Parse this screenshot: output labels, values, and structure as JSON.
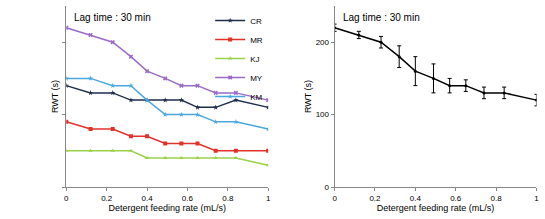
{
  "chart_data": [
    {
      "type": "line",
      "annotation": "Lag time : 30 min",
      "x_label": "Detergent feeding rate (mL/s)",
      "y_label": "RWT (s)",
      "x": [
        0,
        0.12,
        0.23,
        0.32,
        0.4,
        0.49,
        0.57,
        0.65,
        0.74,
        0.84,
        1
      ],
      "xlim": [
        0,
        1
      ],
      "xticks": [
        0,
        0.2,
        0.4,
        0.6,
        0.8,
        1
      ],
      "ylim": [
        0,
        250
      ],
      "yticks": [
        0,
        100,
        200
      ],
      "tick_labels": "x",
      "legend": "upper right",
      "series": [
        {
          "name": "CR",
          "color": "#1f2d4d",
          "marker": "star",
          "values": [
            140,
            130,
            130,
            120,
            120,
            120,
            120,
            110,
            110,
            120,
            110
          ]
        },
        {
          "name": "MR",
          "color": "#e0322b",
          "marker": "square",
          "values": [
            90,
            80,
            80,
            70,
            70,
            60,
            60,
            60,
            50,
            50,
            50
          ]
        },
        {
          "name": "KJ",
          "color": "#9bd24a",
          "marker": "triangle",
          "values": [
            50,
            50,
            50,
            50,
            40,
            40,
            40,
            40,
            40,
            40,
            30
          ]
        },
        {
          "name": "MY",
          "color": "#9b6bc8",
          "marker": "x",
          "values": [
            220,
            210,
            200,
            180,
            160,
            150,
            140,
            140,
            130,
            130,
            120
          ]
        },
        {
          "name": "KM",
          "color": "#4aa8e0",
          "marker": "star",
          "values": [
            150,
            150,
            140,
            140,
            120,
            100,
            100,
            100,
            90,
            90,
            80
          ]
        }
      ]
    },
    {
      "type": "line",
      "annotation": "Lag time : 30 min",
      "x_label": "Detergent feeding rate (mL/s)",
      "y_label": "RWT (s)",
      "x": [
        0,
        0.12,
        0.23,
        0.32,
        0.4,
        0.49,
        0.57,
        0.65,
        0.74,
        0.84,
        1
      ],
      "xlim": [
        0,
        1
      ],
      "xticks": [
        0,
        0.2,
        0.4,
        0.6,
        0.8,
        1
      ],
      "ylim": [
        0,
        250
      ],
      "yticks": [
        0,
        100,
        200
      ],
      "tick_labels": true,
      "series": [
        {
          "color": "#000000",
          "marker": "circle",
          "values": [
            220,
            210,
            200,
            180,
            160,
            150,
            140,
            140,
            130,
            130,
            120
          ],
          "error": [
            5,
            5,
            8,
            15,
            20,
            20,
            10,
            8,
            8,
            8,
            8
          ]
        }
      ]
    }
  ]
}
